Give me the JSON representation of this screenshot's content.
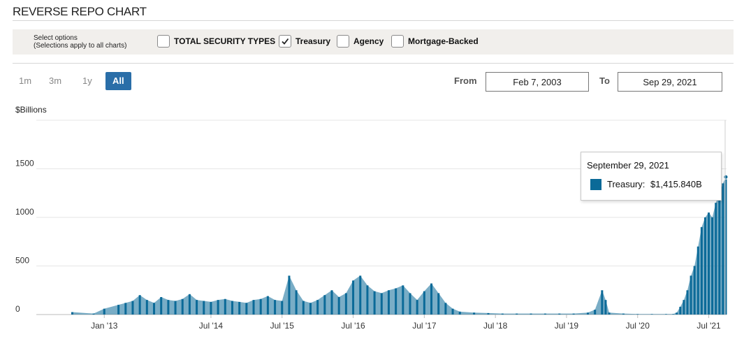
{
  "header": {
    "title": "REVERSE REPO CHART"
  },
  "options": {
    "hint_line1": "Select options",
    "hint_line2": "(Selections apply to all charts)",
    "items": [
      {
        "label": "TOTAL SECURITY TYPES",
        "checked": false
      },
      {
        "label": "Treasury",
        "checked": true
      },
      {
        "label": "Agency",
        "checked": false
      },
      {
        "label": "Mortgage-Backed",
        "checked": false
      }
    ]
  },
  "range": {
    "buttons": [
      "1m",
      "3m",
      "1y",
      "All"
    ],
    "active": "All",
    "from_label": "From",
    "from_value": "Feb 7, 2003",
    "to_label": "To",
    "to_value": "Sep 29, 2021"
  },
  "tooltip": {
    "date": "September 29, 2021",
    "series": "Treasury:",
    "value": "$1,415.840B"
  },
  "colors": {
    "series": "#0b6a98",
    "active_button": "#2a6ea8",
    "options_bg": "#f1efec"
  },
  "chart_data": {
    "type": "bar",
    "ylabel": "$Billions",
    "ylim": [
      0,
      2000
    ],
    "yticks": [
      0,
      500,
      1000,
      1500
    ],
    "xtick_labels": [
      "Jan '13",
      "Jul '14",
      "Jul '15",
      "Jul '16",
      "Jul '17",
      "Jul '18",
      "Jul '19",
      "Jul '20",
      "Jul '21"
    ],
    "xtick_years": [
      2013.0,
      2014.5,
      2015.5,
      2016.5,
      2017.5,
      2018.5,
      2019.5,
      2020.5,
      2021.5
    ],
    "x_range": [
      2012.3,
      2021.75
    ],
    "series": [
      {
        "name": "Treasury",
        "x": [
          2012.55,
          2012.85,
          2013.0,
          2013.2,
          2013.3,
          2013.4,
          2013.5,
          2013.6,
          2013.7,
          2013.8,
          2013.9,
          2014.0,
          2014.1,
          2014.2,
          2014.3,
          2014.4,
          2014.5,
          2014.6,
          2014.7,
          2014.8,
          2014.9,
          2015.0,
          2015.1,
          2015.2,
          2015.3,
          2015.4,
          2015.5,
          2015.6,
          2015.7,
          2015.8,
          2015.9,
          2016.0,
          2016.1,
          2016.2,
          2016.3,
          2016.4,
          2016.5,
          2016.6,
          2016.7,
          2016.8,
          2016.9,
          2017.0,
          2017.1,
          2017.2,
          2017.3,
          2017.4,
          2017.5,
          2017.6,
          2017.7,
          2017.8,
          2017.9,
          2018.0,
          2018.2,
          2018.4,
          2018.6,
          2018.8,
          2019.0,
          2019.2,
          2019.4,
          2019.6,
          2019.8,
          2019.9,
          2020.0,
          2020.05,
          2020.1,
          2020.3,
          2020.5,
          2020.7,
          2020.9,
          2021.0,
          2021.05,
          2021.1,
          2021.15,
          2021.2,
          2021.25,
          2021.3,
          2021.35,
          2021.4,
          2021.45,
          2021.5,
          2021.55,
          2021.6,
          2021.65,
          2021.7,
          2021.74
        ],
        "values": [
          25,
          10,
          60,
          100,
          120,
          140,
          200,
          150,
          120,
          180,
          150,
          140,
          160,
          210,
          150,
          140,
          130,
          150,
          160,
          140,
          130,
          120,
          150,
          160,
          190,
          150,
          140,
          400,
          250,
          140,
          120,
          150,
          200,
          250,
          180,
          220,
          350,
          400,
          300,
          240,
          220,
          250,
          270,
          300,
          220,
          150,
          240,
          320,
          220,
          120,
          60,
          30,
          20,
          15,
          10,
          10,
          10,
          10,
          10,
          10,
          20,
          50,
          250,
          150,
          20,
          10,
          5,
          5,
          5,
          5,
          20,
          80,
          150,
          250,
          400,
          500,
          700,
          900,
          1000,
          1050,
          1000,
          1150,
          1250,
          1350,
          1415.84
        ]
      }
    ]
  }
}
